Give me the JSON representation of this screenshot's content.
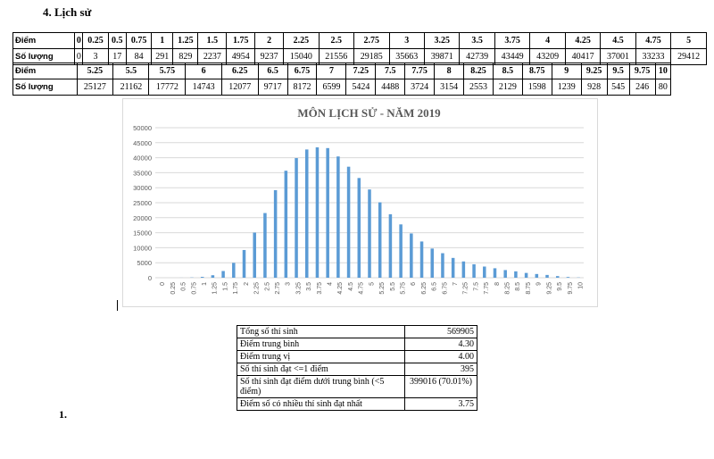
{
  "heading": "4.  Lịch sử",
  "table_row1": {
    "label_diem": "Điểm",
    "label_soluong": "Số lượng",
    "scores": [
      "0",
      "0.25",
      "0.5",
      "0.75",
      "1",
      "1.25",
      "1.5",
      "1.75",
      "2",
      "2.25",
      "2.5",
      "2.75",
      "3",
      "3.25",
      "3.5",
      "3.75",
      "4",
      "4.25",
      "4.5",
      "4.75",
      "5"
    ],
    "counts": [
      "0",
      "3",
      "17",
      "84",
      "291",
      "829",
      "2237",
      "4954",
      "9237",
      "15040",
      "21556",
      "29185",
      "35663",
      "39871",
      "42739",
      "43449",
      "43209",
      "40417",
      "37001",
      "33233",
      "29412"
    ]
  },
  "table_row2": {
    "label_diem": "Điểm",
    "label_soluong": "Số lượng",
    "scores": [
      "5.25",
      "5.5",
      "5.75",
      "6",
      "6.25",
      "6.5",
      "6.75",
      "7",
      "7.25",
      "7.5",
      "7.75",
      "8",
      "8.25",
      "8.5",
      "8.75",
      "9",
      "9.25",
      "9.5",
      "9.75",
      "10"
    ],
    "counts": [
      "25127",
      "21162",
      "17772",
      "14743",
      "12077",
      "9717",
      "8172",
      "6599",
      "5424",
      "4488",
      "3724",
      "3154",
      "2553",
      "2129",
      "1598",
      "1239",
      "928",
      "545",
      "246",
      "80"
    ]
  },
  "chart_data": {
    "type": "bar",
    "title": "MÔN LỊCH SỬ - NĂM 2019",
    "xlabel": "",
    "ylabel": "",
    "ylim": [
      0,
      50000
    ],
    "yticks": [
      0,
      5000,
      10000,
      15000,
      20000,
      25000,
      30000,
      35000,
      40000,
      45000,
      50000
    ],
    "grid": true,
    "bar_color": "#5b9bd5",
    "categories": [
      "0",
      "0.25",
      "0.5",
      "0.75",
      "1",
      "1.25",
      "1.5",
      "1.75",
      "2",
      "2.25",
      "2.5",
      "2.75",
      "3",
      "3.25",
      "3.5",
      "3.75",
      "4",
      "4.25",
      "4.5",
      "4.75",
      "5",
      "5.25",
      "5.5",
      "5.75",
      "6",
      "6.25",
      "6.5",
      "6.75",
      "7",
      "7.25",
      "7.5",
      "7.75",
      "8",
      "8.25",
      "8.5",
      "8.75",
      "9",
      "9.25",
      "9.5",
      "9.75",
      "10"
    ],
    "values": [
      0,
      3,
      17,
      84,
      291,
      829,
      2237,
      4954,
      9237,
      15040,
      21556,
      29185,
      35663,
      39871,
      42739,
      43449,
      43209,
      40417,
      37001,
      33233,
      29412,
      25127,
      21162,
      17772,
      14743,
      12077,
      9717,
      8172,
      6599,
      5424,
      4488,
      3724,
      3154,
      2553,
      2129,
      1598,
      1239,
      928,
      545,
      246,
      80
    ]
  },
  "summary": {
    "rows": [
      {
        "label": "Tổng số thí sinh",
        "value": "569905"
      },
      {
        "label": "Điểm trung bình",
        "value": "4.30"
      },
      {
        "label": "Điểm trung vị",
        "value": "4.00"
      },
      {
        "label": "Số thí sinh đạt <=1 điểm",
        "value": "395"
      },
      {
        "label": "Số thí sinh đạt điểm dưới trung bình (<5 điểm)",
        "value": "399016 (70.01%)"
      },
      {
        "label": "Điểm số có nhiều thí sinh đạt nhất",
        "value": "3.75"
      }
    ]
  },
  "list_number": "1."
}
